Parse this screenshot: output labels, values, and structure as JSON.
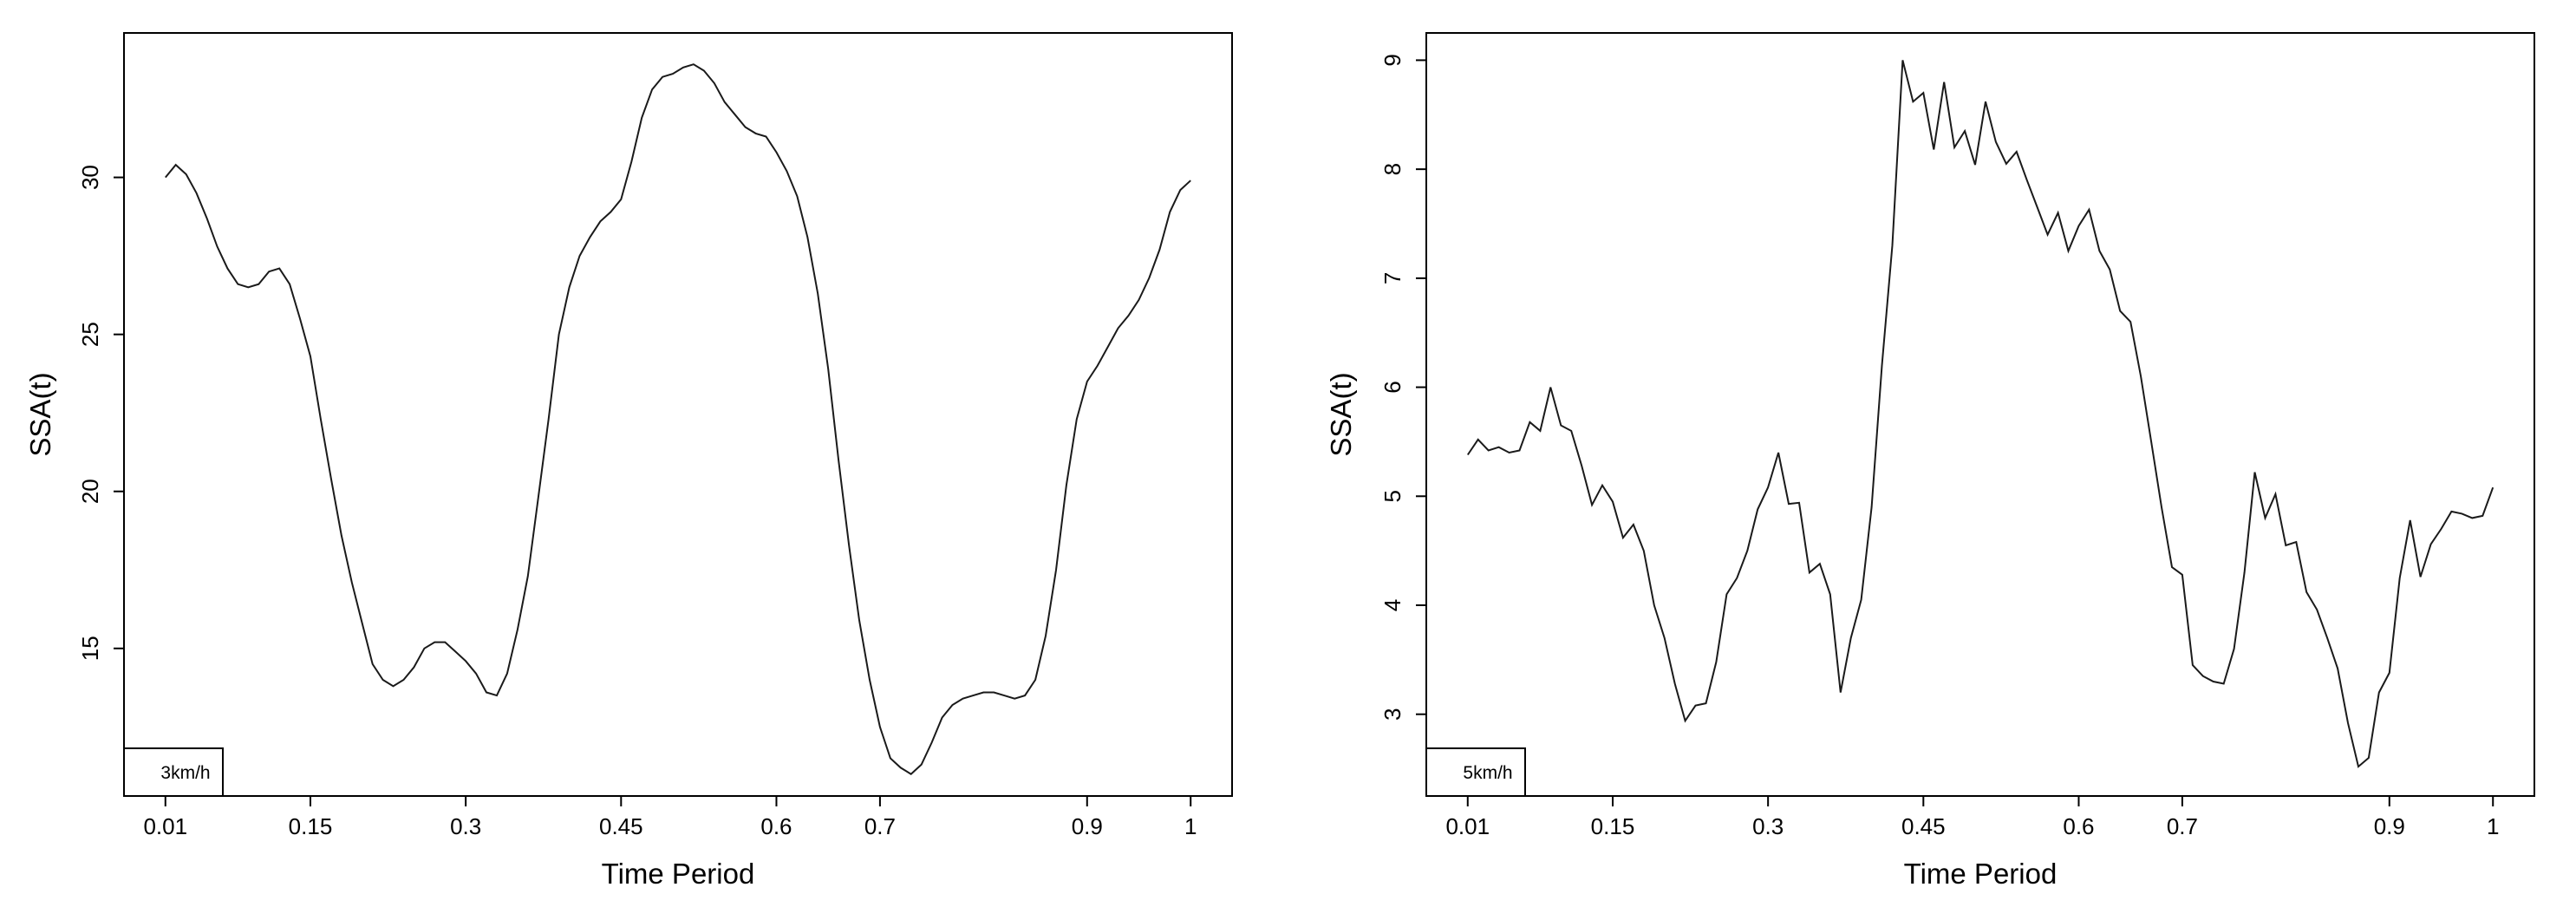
{
  "chart_data": [
    {
      "type": "line",
      "title": "",
      "xlabel": "Time Period",
      "ylabel": "SSA(t)",
      "legend": "3km/h",
      "legend_position": "bottom-left",
      "grid": false,
      "xlim": [
        -0.03,
        1.04
      ],
      "ylim": [
        10.3,
        34.6
      ],
      "x_ticks": [
        "0.01",
        "0.15",
        "0.3",
        "0.45",
        "0.6",
        "0.7",
        "0.9",
        "1"
      ],
      "y_ticks": [
        "15",
        "20",
        "25",
        "30"
      ],
      "series": [
        {
          "x": [
            0.01,
            0.02,
            0.03,
            0.04,
            0.05,
            0.06,
            0.07,
            0.08,
            0.09,
            0.1,
            0.11,
            0.12,
            0.13,
            0.14,
            0.15,
            0.16,
            0.17,
            0.18,
            0.19,
            0.2,
            0.21,
            0.22,
            0.23,
            0.24,
            0.25,
            0.26,
            0.27,
            0.28,
            0.29,
            0.3,
            0.31,
            0.32,
            0.33,
            0.34,
            0.35,
            0.36,
            0.37,
            0.38,
            0.39,
            0.4,
            0.41,
            0.42,
            0.43,
            0.44,
            0.45,
            0.46,
            0.47,
            0.48,
            0.49,
            0.5,
            0.51,
            0.52,
            0.53,
            0.54,
            0.55,
            0.56,
            0.57,
            0.58,
            0.59,
            0.6,
            0.61,
            0.62,
            0.63,
            0.64,
            0.65,
            0.66,
            0.67,
            0.68,
            0.69,
            0.7,
            0.71,
            0.72,
            0.73,
            0.74,
            0.75,
            0.76,
            0.77,
            0.78,
            0.79,
            0.8,
            0.81,
            0.82,
            0.83,
            0.84,
            0.85,
            0.86,
            0.87,
            0.88,
            0.89,
            0.9,
            0.91,
            0.92,
            0.93,
            0.94,
            0.95,
            0.96,
            0.97,
            0.98,
            0.99,
            1.0
          ],
          "y": [
            30.0,
            30.4,
            30.1,
            29.5,
            28.7,
            27.8,
            27.1,
            26.6,
            26.5,
            26.6,
            27.0,
            27.1,
            26.6,
            25.5,
            24.3,
            22.3,
            20.4,
            18.6,
            17.1,
            15.8,
            14.5,
            14.0,
            13.8,
            14.0,
            14.4,
            15.0,
            15.2,
            15.2,
            14.9,
            14.6,
            14.2,
            13.6,
            13.5,
            14.2,
            15.6,
            17.3,
            19.8,
            22.3,
            25.0,
            26.5,
            27.5,
            28.1,
            28.6,
            28.9,
            29.3,
            30.5,
            31.9,
            32.8,
            33.2,
            33.3,
            33.5,
            33.6,
            33.4,
            33.0,
            32.4,
            32.0,
            31.6,
            31.4,
            31.3,
            30.8,
            30.2,
            29.4,
            28.1,
            26.3,
            23.9,
            21.0,
            18.3,
            15.9,
            14.0,
            12.5,
            11.5,
            11.2,
            11.0,
            11.3,
            12.0,
            12.8,
            13.2,
            13.4,
            13.5,
            13.6,
            13.6,
            13.5,
            13.4,
            13.5,
            14.0,
            15.4,
            17.5,
            20.2,
            22.3,
            23.5,
            24.0,
            24.6,
            25.2,
            25.6,
            26.1,
            26.8,
            27.7,
            28.9,
            29.6,
            29.9
          ]
        }
      ]
    },
    {
      "type": "line",
      "title": "",
      "xlabel": "Time Period",
      "ylabel": "SSA(t)",
      "legend": "5km/h",
      "legend_position": "bottom-left",
      "grid": false,
      "xlim": [
        -0.03,
        1.04
      ],
      "ylim": [
        2.25,
        9.25
      ],
      "x_ticks": [
        "0.01",
        "0.15",
        "0.3",
        "0.45",
        "0.6",
        "0.7",
        "0.9",
        "1"
      ],
      "y_ticks": [
        "3",
        "4",
        "5",
        "6",
        "7",
        "8",
        "9"
      ],
      "series": [
        {
          "x": [
            0.01,
            0.02,
            0.03,
            0.04,
            0.05,
            0.06,
            0.07,
            0.08,
            0.09,
            0.1,
            0.11,
            0.12,
            0.13,
            0.14,
            0.15,
            0.16,
            0.17,
            0.18,
            0.19,
            0.2,
            0.21,
            0.22,
            0.23,
            0.24,
            0.25,
            0.26,
            0.27,
            0.28,
            0.29,
            0.3,
            0.31,
            0.32,
            0.33,
            0.34,
            0.35,
            0.36,
            0.37,
            0.38,
            0.39,
            0.4,
            0.41,
            0.42,
            0.43,
            0.44,
            0.45,
            0.46,
            0.47,
            0.48,
            0.49,
            0.5,
            0.51,
            0.52,
            0.53,
            0.54,
            0.55,
            0.56,
            0.57,
            0.58,
            0.59,
            0.6,
            0.61,
            0.62,
            0.63,
            0.64,
            0.65,
            0.66,
            0.67,
            0.68,
            0.69,
            0.7,
            0.71,
            0.72,
            0.73,
            0.74,
            0.75,
            0.76,
            0.77,
            0.78,
            0.79,
            0.8,
            0.81,
            0.82,
            0.83,
            0.84,
            0.85,
            0.86,
            0.87,
            0.88,
            0.89,
            0.9,
            0.91,
            0.92,
            0.93,
            0.94,
            0.95,
            0.96,
            0.97,
            0.98,
            0.99,
            1.0
          ],
          "y": [
            5.38,
            5.52,
            5.42,
            5.45,
            5.4,
            5.42,
            5.68,
            5.6,
            6.0,
            5.65,
            5.6,
            5.28,
            4.92,
            5.1,
            4.95,
            4.62,
            4.74,
            4.5,
            4.0,
            3.7,
            3.28,
            2.94,
            3.08,
            3.1,
            3.48,
            4.1,
            4.25,
            4.5,
            4.88,
            5.08,
            5.4,
            4.93,
            4.94,
            4.3,
            4.38,
            4.1,
            3.2,
            3.7,
            4.05,
            4.9,
            6.2,
            7.3,
            9.0,
            8.62,
            8.7,
            8.18,
            8.8,
            8.2,
            8.35,
            8.04,
            8.62,
            8.25,
            8.05,
            8.16,
            7.9,
            7.65,
            7.4,
            7.6,
            7.25,
            7.48,
            7.63,
            7.25,
            7.08,
            6.7,
            6.6,
            6.1,
            5.5,
            4.9,
            4.35,
            4.28,
            3.45,
            3.35,
            3.3,
            3.28,
            3.6,
            4.3,
            5.22,
            4.8,
            5.02,
            4.55,
            4.58,
            4.12,
            3.96,
            3.7,
            3.42,
            2.92,
            2.52,
            2.6,
            3.2,
            3.38,
            4.25,
            4.78,
            4.26,
            4.56,
            4.7,
            4.86,
            4.84,
            4.8,
            4.82,
            5.08
          ]
        }
      ]
    }
  ]
}
